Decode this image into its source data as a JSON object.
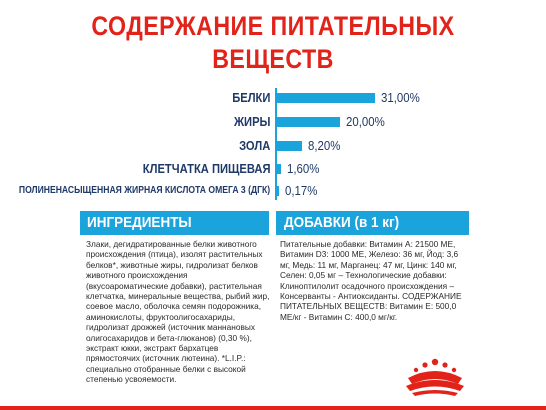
{
  "title_line1": "СОДЕРЖАНИЕ ПИТАТЕЛЬНЫХ",
  "title_line2": "ВЕЩЕСТВ",
  "chart_data": {
    "type": "bar",
    "orientation": "horizontal",
    "categories": [
      "БЕЛКИ",
      "ЖИРЫ",
      "ЗОЛА",
      "КЛЕТЧАТКА ПИЩЕВАЯ",
      "ПОЛИНЕНАСЫЩЕННАЯ ЖИРНАЯ КИСЛОТА ОМЕГА 3 (ДГК)"
    ],
    "values": [
      31.0,
      20.0,
      8.2,
      1.6,
      0.17
    ],
    "value_labels": [
      "31,00%",
      "20,00%",
      "8,20%",
      "1,60%",
      "0,17%"
    ],
    "bar_color": "#1ba3dc",
    "label_color": "#1f3a68"
  },
  "ingredients": {
    "heading": "ИНГРЕДИЕНТЫ",
    "text": "Злаки, дегидратированные белки животного происхождения (птица), изолят растительных белков*, животные жиры, гидролизат белков животного происхождения (вкусоароматические добавки), растительная клетчатка, минеральные вещества, рыбий жир, соевое масло, оболочка семян подорожника, аминокислоты, фруктоолигосахариды, гидролизат дрожжей (источник маннановых олигосахаридов и бета-глюканов) (0,30 %), экстракт юкки, экстракт бархатцев прямостоячих (источник лютеина). *L.I.P.: специально отобранные белки с высокой степенью усвояемости."
  },
  "additives": {
    "heading": "ДОБАВКИ (в 1 кг)",
    "text": "Питательные добавки: Витамин А: 21500 МЕ, Витамин D3: 1000 МЕ, Железо: 36 мг, Йод: 3,6 мг, Медь: 11 мг, Марганец: 47 мг, Цинк: 140 мг, Селен: 0,05 мг – Технологические добавки: Клиноптилолит осадочного происхождения – Консерванты - Антиоксиданты. СОДЕРЖАНИЕ ПИТАТЕЛЬНЫХ ВЕЩЕСТВ: Витамин Е: 500,0 МЕ/кг - Витамин С: 400,0 мг/кг."
  },
  "logo_icon": "royal-canin-crown-logo",
  "colors": {
    "title": "#e2231a",
    "accent": "#1ba3dc",
    "label": "#1f3a68",
    "bottom_bar": "#e2231a"
  }
}
